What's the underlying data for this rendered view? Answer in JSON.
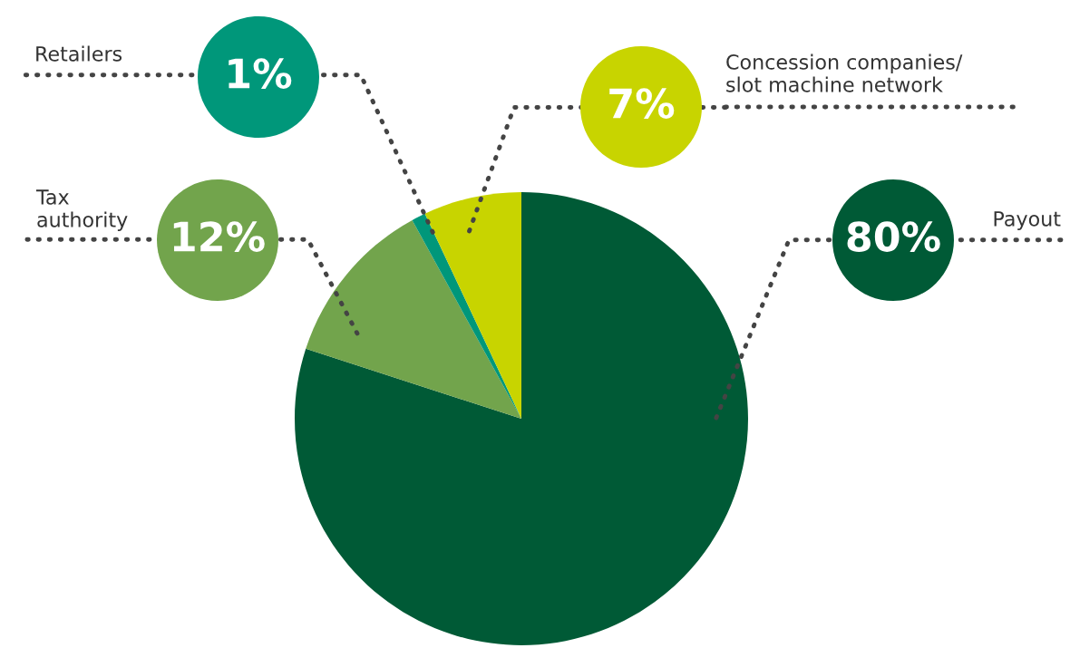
{
  "chart_data": {
    "type": "pie",
    "categories": [
      "Payout",
      "Tax\nauthority",
      "Retailers",
      "Concession companies/\nslot machine network"
    ],
    "values": [
      80,
      12,
      1,
      7
    ],
    "colors": [
      "#005a36",
      "#72a44c",
      "#00977a",
      "#c8d400"
    ],
    "value_labels": [
      "80%",
      "12%",
      "1%",
      "7%"
    ]
  }
}
